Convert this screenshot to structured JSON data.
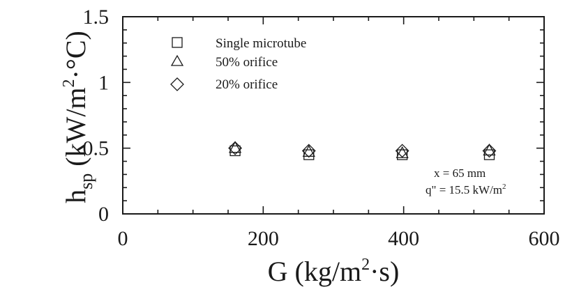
{
  "chart_data": {
    "type": "scatter",
    "title": "",
    "xlabel": {
      "base": "G (kg/m",
      "sup": "2",
      "tail": "·s)"
    },
    "ylabel": {
      "base": "h",
      "sub": "sp",
      "mid": " (kW/m",
      "sup": "2",
      "tail": "·°C)"
    },
    "xlim": [
      0,
      600
    ],
    "ylim": [
      0,
      1.5
    ],
    "xticks": [
      0,
      200,
      400,
      600
    ],
    "xtick_labels": [
      "0",
      "200",
      "400",
      "600"
    ],
    "yticks": [
      0,
      0.5,
      1,
      1.5
    ],
    "ytick_labels": [
      "0",
      "0.5",
      "1",
      "1.5"
    ],
    "grid": false,
    "legend_position": "top-left",
    "series": [
      {
        "name": "Single microtube",
        "marker": "square",
        "x": [
          160,
          265,
          398,
          522
        ],
        "y": [
          0.48,
          0.45,
          0.45,
          0.45
        ]
      },
      {
        "name": "50% orifice",
        "marker": "triangle",
        "x": [
          160,
          265,
          398,
          522
        ],
        "y": [
          0.5,
          0.47,
          0.46,
          0.48
        ]
      },
      {
        "name": "20% orifice",
        "marker": "diamond",
        "x": [
          160,
          265,
          398,
          522
        ],
        "y": [
          0.5,
          0.48,
          0.48,
          0.48
        ]
      }
    ],
    "annotations": [
      {
        "text": "x  = 65 mm"
      },
      {
        "text": "q\" = 15.5 kW/m",
        "sup": "2"
      }
    ]
  }
}
